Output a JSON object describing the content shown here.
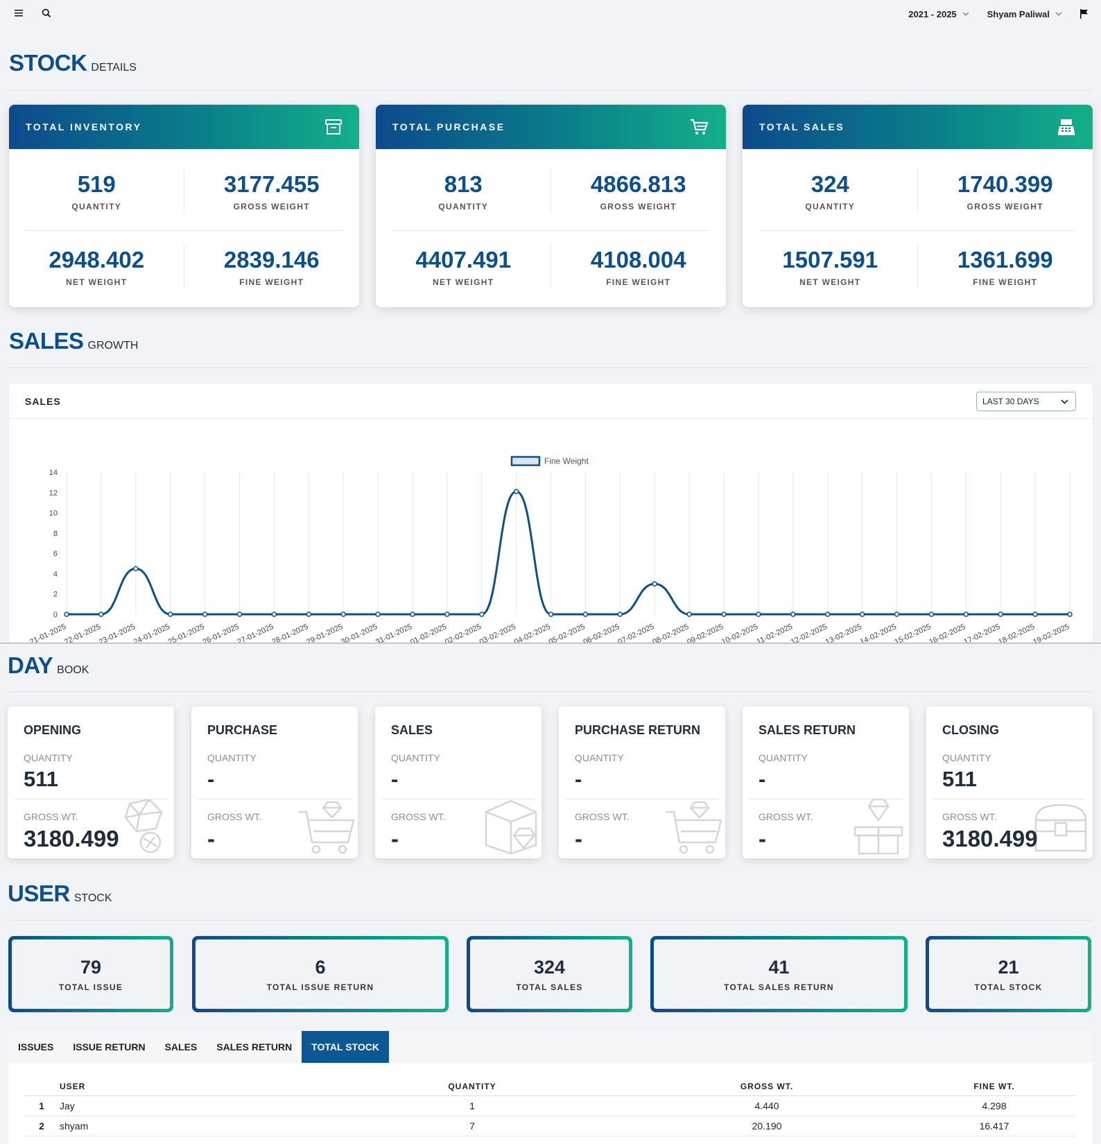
{
  "topbar": {
    "menu_icon": "hamburger-icon",
    "search_icon": "search-icon",
    "year_range": "2021 - 2025",
    "user_name": "Shyam Paliwal",
    "flag_icon": "flag-icon"
  },
  "sections": {
    "stock": {
      "big": "STOCK",
      "small": "DETAILS"
    },
    "sales": {
      "big": "SALES",
      "small": "GROWTH"
    },
    "day": {
      "big": "DAY",
      "small": "BOOK"
    },
    "user": {
      "big": "USER",
      "small": "STOCK"
    }
  },
  "summary_cards": [
    {
      "title": "TOTAL INVENTORY",
      "icon": "archive-icon",
      "items": [
        {
          "value": "519",
          "label": "QUANTITY"
        },
        {
          "value": "3177.455",
          "label": "GROSS WEIGHT"
        },
        {
          "value": "2948.402",
          "label": "NET WEIGHT"
        },
        {
          "value": "2839.146",
          "label": "FINE WEIGHT"
        }
      ]
    },
    {
      "title": "TOTAL PURCHASE",
      "icon": "cart-icon",
      "items": [
        {
          "value": "813",
          "label": "QUANTITY"
        },
        {
          "value": "4866.813",
          "label": "GROSS WEIGHT"
        },
        {
          "value": "4407.491",
          "label": "NET WEIGHT"
        },
        {
          "value": "4108.004",
          "label": "FINE WEIGHT"
        }
      ]
    },
    {
      "title": "TOTAL SALES",
      "icon": "cash-register-icon",
      "items": [
        {
          "value": "324",
          "label": "QUANTITY"
        },
        {
          "value": "1740.399",
          "label": "GROSS WEIGHT"
        },
        {
          "value": "1507.591",
          "label": "NET WEIGHT"
        },
        {
          "value": "1361.699",
          "label": "FINE WEIGHT"
        }
      ]
    }
  ],
  "sales_chart": {
    "header": "SALES",
    "range_select": "LAST 30 DAYS"
  },
  "chart_data": {
    "type": "line",
    "legend": "Fine Weight",
    "legend_position": "top",
    "grid": "vertical",
    "ylim": [
      0,
      14
    ],
    "yticks": [
      0,
      2,
      4,
      6,
      8,
      10,
      12,
      14
    ],
    "x": [
      "21-01-2025",
      "22-01-2025",
      "23-01-2025",
      "24-01-2025",
      "25-01-2025",
      "26-01-2025",
      "27-01-2025",
      "28-01-2025",
      "29-01-2025",
      "30-01-2025",
      "31-01-2025",
      "01-02-2025",
      "02-02-2025",
      "03-02-2025",
      "04-02-2025",
      "05-02-2025",
      "06-02-2025",
      "07-02-2025",
      "08-02-2025",
      "09-02-2025",
      "10-02-2025",
      "11-02-2025",
      "12-02-2025",
      "13-02-2025",
      "14-02-2025",
      "15-02-2025",
      "16-02-2025",
      "17-02-2025",
      "18-02-2025",
      "19-02-2025"
    ],
    "series": [
      {
        "name": "Fine Weight",
        "color": "#0d4f8b",
        "values": [
          0,
          0,
          4.5,
          0,
          0,
          0,
          0,
          0,
          0,
          0,
          0,
          0,
          0,
          12.1,
          0,
          0,
          0,
          3,
          0,
          0,
          0,
          0,
          0,
          0,
          0,
          0,
          0,
          0,
          0,
          0
        ]
      }
    ]
  },
  "day_book": [
    {
      "title": "OPENING",
      "qty_label": "QUANTITY",
      "qty": "511",
      "gross_label": "GROSS WT.",
      "gross": "3180.499",
      "bg_icon": "gems-icon"
    },
    {
      "title": "PURCHASE",
      "qty_label": "QUANTITY",
      "qty": "-",
      "gross_label": "GROSS WT.",
      "gross": "-",
      "bg_icon": "diamond-cart-icon"
    },
    {
      "title": "SALES",
      "qty_label": "QUANTITY",
      "qty": "-",
      "gross_label": "GROSS WT.",
      "gross": "-",
      "bg_icon": "diamond-box-icon"
    },
    {
      "title": "PURCHASE RETURN",
      "qty_label": "QUANTITY",
      "qty": "-",
      "gross_label": "GROSS WT.",
      "gross": "-",
      "bg_icon": "diamond-cart-icon"
    },
    {
      "title": "SALES RETURN",
      "qty_label": "QUANTITY",
      "qty": "-",
      "gross_label": "GROSS WT.",
      "gross": "-",
      "bg_icon": "diamond-gift-icon"
    },
    {
      "title": "CLOSING",
      "qty_label": "QUANTITY",
      "qty": "511",
      "gross_label": "GROSS WT.",
      "gross": "3180.499",
      "bg_icon": "treasure-chest-icon"
    }
  ],
  "user_stock": [
    {
      "value": "79",
      "label": "TOTAL ISSUE"
    },
    {
      "value": "6",
      "label": "TOTAL ISSUE RETURN"
    },
    {
      "value": "324",
      "label": "TOTAL SALES"
    },
    {
      "value": "41",
      "label": "TOTAL SALES RETURN"
    },
    {
      "value": "21",
      "label": "TOTAL STOCK"
    }
  ],
  "tabs": [
    {
      "label": "ISSUES",
      "active": false
    },
    {
      "label": "ISSUE RETURN",
      "active": false
    },
    {
      "label": "SALES",
      "active": false
    },
    {
      "label": "SALES RETURN",
      "active": false
    },
    {
      "label": "TOTAL STOCK",
      "active": true
    }
  ],
  "table": {
    "headers": [
      "USER",
      "QUANTITY",
      "GROSS WT.",
      "FINE WT."
    ],
    "rows": [
      {
        "no": "1",
        "user": "Jay",
        "quantity": "1",
        "gross": "4.440",
        "fine": "4.298"
      },
      {
        "no": "2",
        "user": "shyam",
        "quantity": "7",
        "gross": "20.190",
        "fine": "16.417"
      }
    ]
  }
}
